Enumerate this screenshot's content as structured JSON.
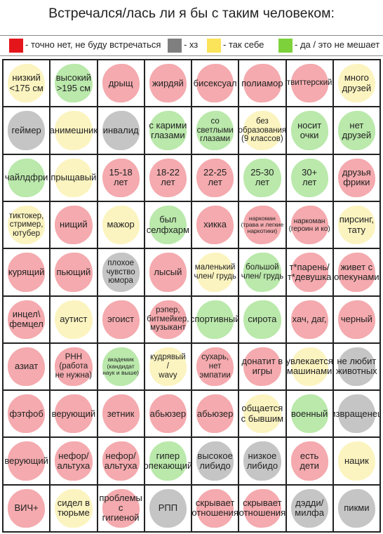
{
  "title": "Встречался/лась ли я бы с таким человеком:",
  "legend": [
    {
      "label": "- точно нет, не буду встречаться",
      "color": "#e4161c"
    },
    {
      "label": "- хз",
      "color": "#7f7f7f"
    },
    {
      "label": "- так себе",
      "color": "#fbe35a"
    },
    {
      "label": "- да / это не мешает",
      "color": "#7dd23c"
    }
  ],
  "colors": {
    "red": "#f0898f",
    "gray": "#aeaeae",
    "yellow": "#fbf0a8",
    "green": "#9fe08a"
  },
  "cells": [
    [
      {
        "text": "низкий\n<175 см",
        "color": "yellow"
      },
      {
        "text": "высокий\n>195 см",
        "color": "green"
      },
      {
        "text": "дрыщ",
        "color": "red"
      },
      {
        "text": "жирдяй",
        "color": "red"
      },
      {
        "text": "бисексуал",
        "color": "red"
      },
      {
        "text": "полиамор",
        "color": "red"
      },
      {
        "text": "твиттерский",
        "color": "red"
      },
      {
        "text": "много\nдрузей",
        "color": "yellow"
      }
    ],
    [
      {
        "text": "геймер",
        "color": "gray"
      },
      {
        "text": "анимешник",
        "color": "yellow"
      },
      {
        "text": "инвалид",
        "color": "gray"
      },
      {
        "text": "с карими\nглазами",
        "color": "green"
      },
      {
        "text": "со светлыми\nглазами",
        "color": "green"
      },
      {
        "text": "без\nобразования\n(9 классов)",
        "color": "yellow"
      },
      {
        "text": "носит\nочки",
        "color": "green"
      },
      {
        "text": "нет\nдрузей",
        "color": "green"
      }
    ],
    [
      {
        "text": "чайлдфри",
        "color": "green"
      },
      {
        "text": "прыщавый",
        "color": "yellow"
      },
      {
        "text": "15-18\nлет",
        "color": "red"
      },
      {
        "text": "18-22\nлет",
        "color": "red"
      },
      {
        "text": "22-25\nлет",
        "color": "red"
      },
      {
        "text": "25-30\nлет",
        "color": "green"
      },
      {
        "text": "30+\nлет",
        "color": "green"
      },
      {
        "text": "друзья\nфрики",
        "color": "red"
      }
    ],
    [
      {
        "text": "тиктокер,\nстример,\nютубер",
        "color": "yellow"
      },
      {
        "text": "нищий",
        "color": "red"
      },
      {
        "text": "мажор",
        "color": "yellow"
      },
      {
        "text": "был\nселфхарм",
        "color": "green"
      },
      {
        "text": "хикка",
        "color": "red"
      },
      {
        "text": "наркоман\n(трава и легкие\nнаркотики)",
        "color": "red"
      },
      {
        "text": "наркоман\n(героин и ко)",
        "color": "red"
      },
      {
        "text": "пирсинг,\nтату",
        "color": "yellow"
      }
    ],
    [
      {
        "text": "курящий",
        "color": "red"
      },
      {
        "text": "пьющий",
        "color": "red"
      },
      {
        "text": "плохое\nчувство\nюмора",
        "color": "gray"
      },
      {
        "text": "лысый",
        "color": "red"
      },
      {
        "text": "маленький\nчлен/ грудь",
        "color": "yellow"
      },
      {
        "text": "большой\nчлен/ грудь",
        "color": "green"
      },
      {
        "text": "т*парень/\nт*девушка",
        "color": "red"
      },
      {
        "text": "живет с\nопекунами",
        "color": "red"
      }
    ],
    [
      {
        "text": "инцел\\\nфемцел",
        "color": "red"
      },
      {
        "text": "аутист",
        "color": "yellow"
      },
      {
        "text": "эгоист",
        "color": "red"
      },
      {
        "text": "рэпер,\nбитмейкер,\nмузыкант",
        "color": "red"
      },
      {
        "text": "спортивный",
        "color": "green"
      },
      {
        "text": "сирота",
        "color": "green"
      },
      {
        "text": "хач, даг,",
        "color": "red"
      },
      {
        "text": "черный",
        "color": "red"
      }
    ],
    [
      {
        "text": "азиат",
        "color": "red"
      },
      {
        "text": "РНН\n(работа\nне нужна)",
        "color": "red"
      },
      {
        "text": "академик\n(кандидат\nнаук и выше)",
        "color": "green"
      },
      {
        "text": "кудрявый\n/\nwavy",
        "color": "yellow"
      },
      {
        "text": "сухарь,\nнет\nэмпатии",
        "color": "red"
      },
      {
        "text": "донатит в\nигры",
        "color": "red"
      },
      {
        "text": "увлекается\nмашинами",
        "color": "yellow"
      },
      {
        "text": "не любит\nживотных",
        "color": "gray"
      }
    ],
    [
      {
        "text": "фэтфоб",
        "color": "red"
      },
      {
        "text": "верующий",
        "color": "red"
      },
      {
        "text": "зетник",
        "color": "red"
      },
      {
        "text": "абьюзер",
        "color": "red"
      },
      {
        "text": "абьюзер",
        "color": "red"
      },
      {
        "text": "общается\nс бывшим",
        "color": "yellow"
      },
      {
        "text": "военный",
        "color": "green"
      },
      {
        "text": "извращенец",
        "color": "gray"
      }
    ],
    [
      {
        "text": "верующий",
        "color": "red"
      },
      {
        "text": "нефор/\nальтуха",
        "color": "red"
      },
      {
        "text": "нефор/\nальтуха",
        "color": "red"
      },
      {
        "text": "гипер\nопекающий",
        "color": "green"
      },
      {
        "text": "высокое\nлибидо",
        "color": "gray"
      },
      {
        "text": "низкое\nлибидо",
        "color": "gray"
      },
      {
        "text": "есть\nдети",
        "color": "red"
      },
      {
        "text": "нацик",
        "color": "yellow"
      }
    ],
    [
      {
        "text": "ВИЧ+",
        "color": "red"
      },
      {
        "text": "сидел в\nтюрьме",
        "color": "yellow"
      },
      {
        "text": "проблемы с\nгигиеной",
        "color": "red"
      },
      {
        "text": "РПП",
        "color": "gray"
      },
      {
        "text": "скрывает\nотношения",
        "color": "red"
      },
      {
        "text": "скрывает\nотношения",
        "color": "red"
      },
      {
        "text": "дэдди/\nмилфа",
        "color": "gray"
      },
      {
        "text": "пикми",
        "color": "gray"
      }
    ]
  ]
}
